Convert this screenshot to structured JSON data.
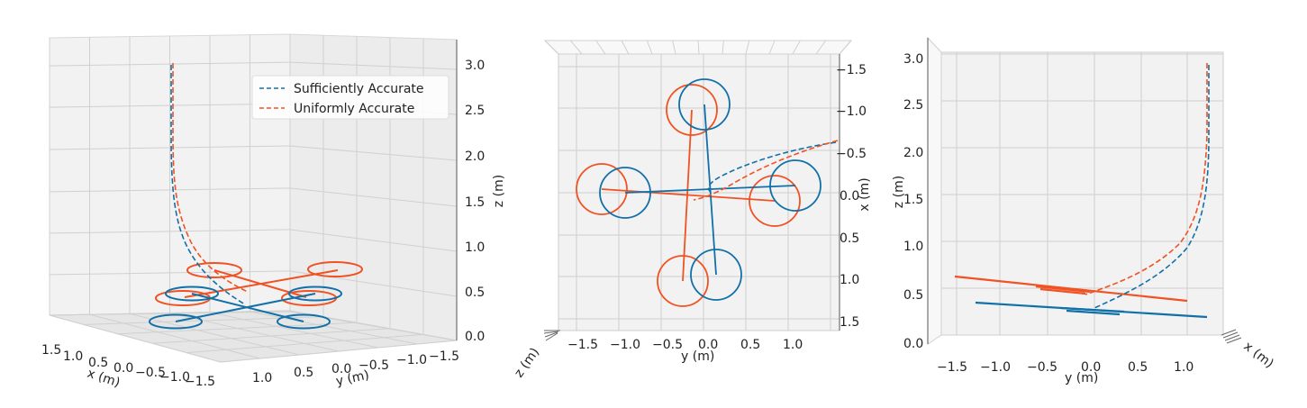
{
  "colors": {
    "sufficient": "#1170a8",
    "uniform": "#f05223",
    "grid": "#c9c9c9",
    "pane": "#f2f2f2"
  },
  "chart_data": [
    {
      "type": "line",
      "view": "3d-perspective",
      "xlabel": "x (m)",
      "ylabel": "y (m)",
      "zlabel": "z (m)",
      "xticks": [
        "1.5",
        "1.0",
        "0.5",
        "0.0",
        "−0.5",
        "−1.0",
        "−1.5"
      ],
      "yticks": [
        "1.0",
        "0.5",
        "0.0",
        "−0.5",
        "−1.0",
        "−1.5"
      ],
      "zticks": [
        "0.0",
        "0.5",
        "1.0",
        "1.5",
        "2.0",
        "2.5",
        "3.0"
      ],
      "zlim": [
        0,
        3.2
      ],
      "legend": {
        "position": "top-right",
        "entries": [
          {
            "label": "Sufficiently Accurate",
            "style": "dashed",
            "color": "#1170a8"
          },
          {
            "label": "Uniformly Accurate",
            "style": "dashed",
            "color": "#f05223"
          }
        ]
      },
      "series": [
        {
          "name": "Sufficiently Accurate",
          "style": "dashed",
          "approx_z": [
            3.0,
            2.5,
            2.0,
            1.5,
            1.0,
            0.5,
            0.3
          ]
        },
        {
          "name": "Uniformly Accurate",
          "style": "dashed",
          "approx_z": [
            3.0,
            2.5,
            2.0,
            1.5,
            1.0,
            0.6,
            0.5
          ]
        }
      ],
      "drone_poses": [
        {
          "series": "Sufficiently Accurate",
          "altitude": 0.25
        },
        {
          "series": "Uniformly Accurate",
          "altitude": 0.55
        }
      ]
    },
    {
      "type": "line",
      "view": "top-down",
      "xlabel": "y (m)",
      "ylabel": "x (m)",
      "zlabel": "z (m)",
      "xticks": [
        "−1.5",
        "−1.0",
        "−0.5",
        "0.0",
        "0.5",
        "1.0"
      ],
      "yticks": [
        "−1.5",
        "−1.0",
        "−0.5",
        "0.0",
        "0.5",
        "1.0",
        "1.5"
      ],
      "xlim": [
        -1.8,
        1.5
      ],
      "ylim": [
        -1.6,
        1.6
      ]
    },
    {
      "type": "line",
      "view": "side",
      "xlabel": "y (m)",
      "ylabel": "z (m)",
      "zlabel": "x (m)",
      "xticks": [
        "−1.5",
        "−1.0",
        "−0.5",
        "0.0",
        "0.5",
        "1.0"
      ],
      "yticks": [
        "0.0",
        "0.5",
        "1.0",
        "1.5",
        "2.0",
        "2.5",
        "3.0"
      ],
      "xlim": [
        -1.7,
        1.5
      ],
      "ylim": [
        0,
        3.2
      ]
    }
  ]
}
